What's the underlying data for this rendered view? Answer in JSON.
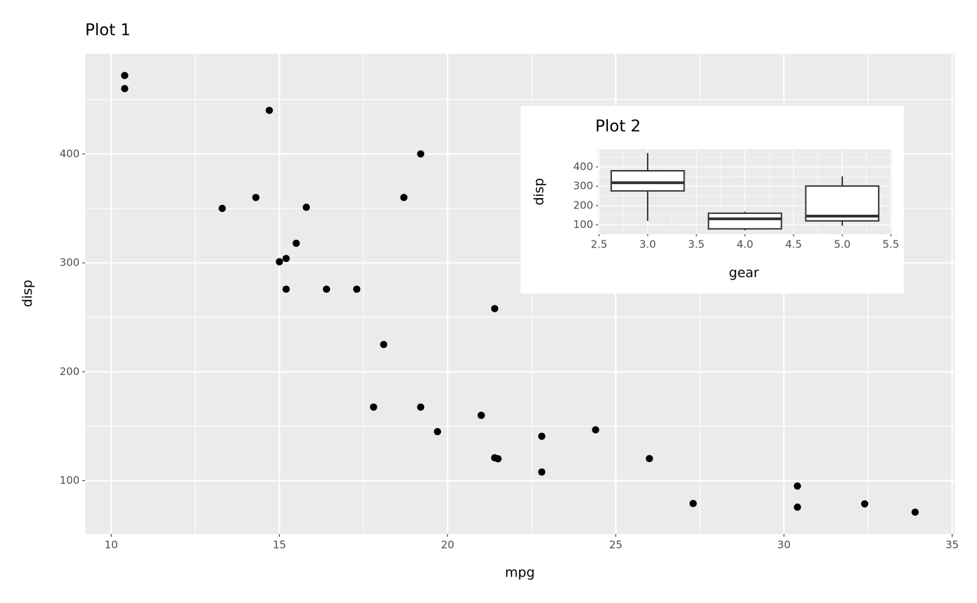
{
  "chart_data": [
    {
      "type": "scatter",
      "title": "Plot 1",
      "x_label": "mpg",
      "y_label": "disp",
      "x": [
        21.0,
        21.0,
        22.8,
        21.4,
        18.7,
        18.1,
        14.3,
        24.4,
        22.8,
        19.2,
        17.8,
        16.4,
        17.3,
        15.2,
        10.4,
        10.4,
        14.7,
        32.4,
        30.4,
        33.9,
        21.5,
        15.5,
        15.2,
        13.3,
        19.2,
        27.3,
        26.0,
        30.4,
        15.8,
        19.7,
        15.0,
        21.4
      ],
      "values": [
        160,
        160,
        108,
        258,
        360,
        225,
        360,
        146.7,
        140.8,
        167.6,
        167.6,
        275.8,
        275.8,
        275.8,
        472,
        460,
        440,
        78.7,
        75.7,
        71.1,
        120.1,
        318,
        304,
        350,
        400,
        79,
        120.3,
        95.1,
        351,
        145,
        301,
        121
      ],
      "color": "#000000",
      "xlim": [
        9.225,
        35.075
      ],
      "ylim": [
        51.055,
        492.045
      ],
      "xticks": [
        10,
        15,
        20,
        25,
        30,
        35
      ],
      "yticks": [
        100,
        200,
        300,
        400
      ],
      "xminorticks": [
        12.5,
        17.5,
        22.5,
        27.5,
        32.5
      ],
      "yminorticks": [
        150,
        250,
        350,
        450
      ],
      "grid": true
    },
    {
      "type": "box",
      "title": "Plot 2",
      "x_label": "gear",
      "y_label": "disp",
      "x": [
        3,
        4,
        5
      ],
      "min": [
        120.1,
        71.1,
        95.1
      ],
      "q1": [
        275.8,
        78.925,
        120.3
      ],
      "median": [
        318,
        130.9,
        145
      ],
      "q3": [
        380,
        160,
        301
      ],
      "max": [
        472,
        167.6,
        351
      ],
      "color": "#333333",
      "xlim": [
        2.49,
        5.51
      ],
      "ylim": [
        51.055,
        492.045
      ],
      "xticks": [
        2.5,
        {
          "value": 3,
          "label": "3.0"
        },
        3.5,
        {
          "value": 4,
          "label": "4.0"
        },
        4.5,
        {
          "value": 5,
          "label": "5.0"
        },
        5.5
      ],
      "yticks": [
        100,
        200,
        300,
        400
      ],
      "xminorticks": [
        2.75,
        3.25,
        3.75,
        4.25,
        4.75,
        5.25
      ],
      "yminorticks": [
        150,
        250,
        350,
        450
      ],
      "grid": true
    }
  ]
}
